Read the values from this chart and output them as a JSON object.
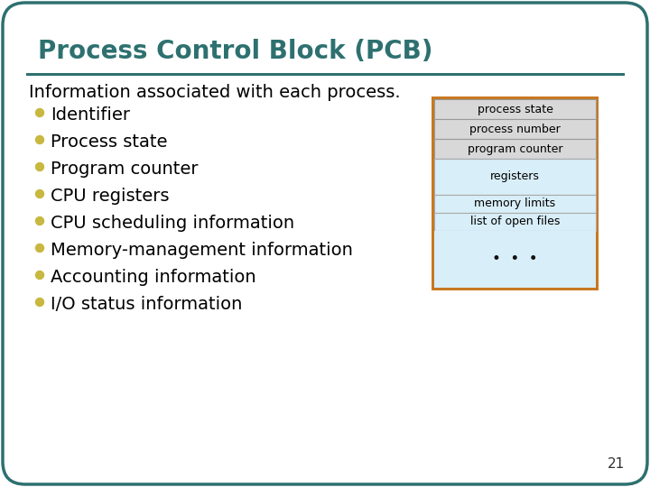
{
  "title": "Process Control Block (PCB)",
  "title_color": "#2E7070",
  "bg_color": "#FFFFFF",
  "slide_border_color": "#2E7070",
  "separator_color": "#2E7070",
  "intro_text": "Information associated with each process.",
  "bullet_items": [
    "Identifier",
    "Process state",
    "Program counter",
    "CPU registers",
    "CPU scheduling information",
    "Memory-management information",
    "Accounting information",
    "I/O status information"
  ],
  "bullet_color": "#C8B840",
  "text_color": "#000000",
  "pcb_box": {
    "border_color": "#C87820",
    "top_section_bg": "#D8D8D8",
    "bottom_section_bg": "#D8EEF8",
    "rows_top": [
      "process state",
      "process number",
      "program counter"
    ],
    "row_mid": "registers",
    "rows_bot": [
      "memory limits",
      "list of open files"
    ],
    "dots": "•  •  •"
  },
  "page_number": "21",
  "font_size_title": 20,
  "font_size_body": 14,
  "font_size_pcb": 9,
  "font_size_page": 11
}
